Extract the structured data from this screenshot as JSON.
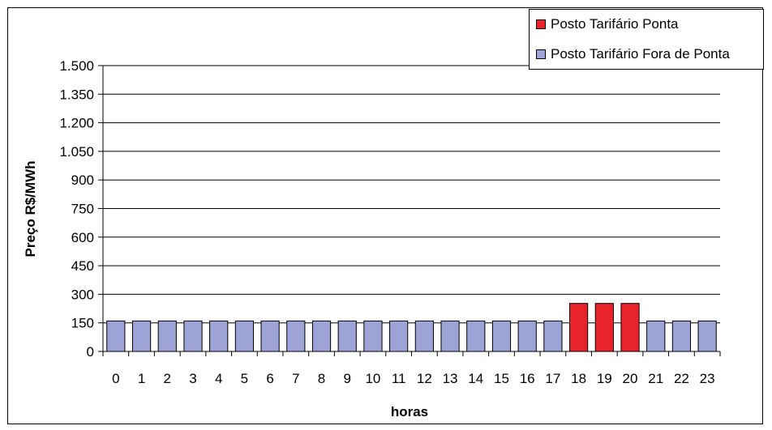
{
  "chart_data": {
    "type": "bar",
    "title": "",
    "xlabel": "horas",
    "ylabel": "Preço R$/MWh",
    "ylim": [
      0,
      1500
    ],
    "yticks": [
      0,
      150,
      300,
      450,
      600,
      750,
      900,
      1050,
      1200,
      1350,
      1500
    ],
    "ytick_labels": [
      "0",
      "150",
      "300",
      "450",
      "600",
      "750",
      "900",
      "1.050",
      "1.200",
      "1.350",
      "1.500"
    ],
    "categories": [
      "0",
      "1",
      "2",
      "3",
      "4",
      "5",
      "6",
      "7",
      "8",
      "9",
      "10",
      "11",
      "12",
      "13",
      "14",
      "15",
      "16",
      "17",
      "18",
      "19",
      "20",
      "21",
      "22",
      "23"
    ],
    "values": [
      160,
      160,
      160,
      160,
      160,
      160,
      160,
      160,
      160,
      160,
      160,
      160,
      160,
      160,
      160,
      160,
      160,
      160,
      252,
      252,
      252,
      160,
      160,
      160
    ],
    "bar_series": [
      "fora",
      "fora",
      "fora",
      "fora",
      "fora",
      "fora",
      "fora",
      "fora",
      "fora",
      "fora",
      "fora",
      "fora",
      "fora",
      "fora",
      "fora",
      "fora",
      "fora",
      "fora",
      "ponta",
      "ponta",
      "ponta",
      "fora",
      "fora",
      "fora"
    ],
    "series": [
      {
        "key": "ponta",
        "name": "Posto Tarifário Ponta",
        "color": "#e8232a"
      },
      {
        "key": "fora",
        "name": "Posto Tarifário Fora de Ponta",
        "color": "#9da3d6"
      }
    ],
    "grid": true,
    "legend_position": "top-right"
  }
}
